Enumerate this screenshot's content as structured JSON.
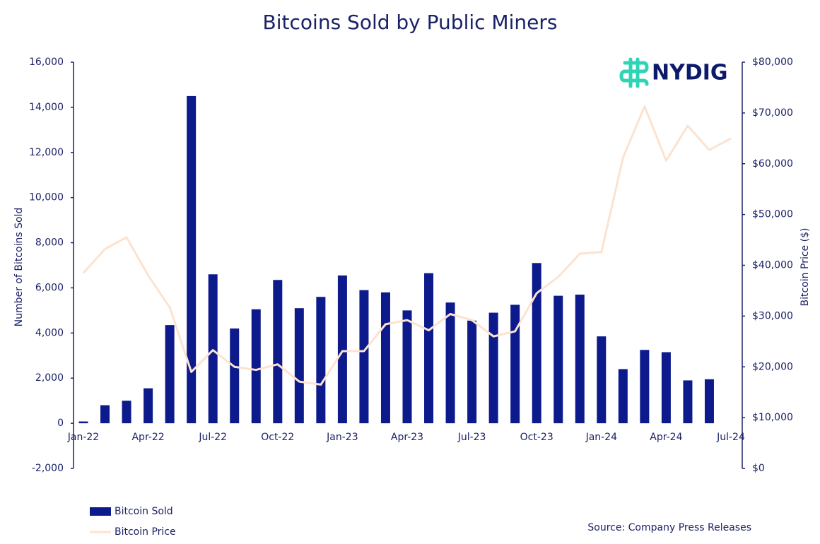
{
  "chart_data": {
    "type": "bar",
    "title": "Bitcoins Sold by Public Miners",
    "ylabel": "Number of Bitcoins Sold",
    "y2label": "Bitcoin Price ($)",
    "source": "Source: Company Press Releases",
    "categories": [
      "Jan-22",
      null,
      null,
      "Apr-22",
      null,
      null,
      "Jul-22",
      null,
      null,
      "Oct-22",
      null,
      null,
      "Jan-23",
      null,
      null,
      "Apr-23",
      null,
      null,
      "Jul-23",
      null,
      null,
      "Oct-23",
      null,
      null,
      "Jan-24",
      null,
      null,
      "Apr-24",
      null,
      null,
      "Jul-24"
    ],
    "series": [
      {
        "name": "Bitcoin Sold",
        "type": "bar",
        "axis": "y",
        "color": "#0c1a8c",
        "values": [
          80,
          800,
          1000,
          1550,
          4350,
          14500,
          6600,
          4200,
          5050,
          6350,
          5100,
          5600,
          6550,
          5900,
          5800,
          5000,
          6650,
          5350,
          4550,
          4900,
          5250,
          7100,
          5650,
          5700,
          3850,
          2400,
          3250,
          3150,
          1900,
          1950,
          null
        ]
      },
      {
        "name": "Bitcoin Price",
        "type": "line",
        "axis": "y2",
        "color": "#fce3d0",
        "values": [
          38500,
          43200,
          45500,
          38000,
          31700,
          19000,
          23300,
          20000,
          19400,
          20500,
          17100,
          16500,
          23100,
          23100,
          28400,
          29200,
          27200,
          30400,
          29200,
          26000,
          27000,
          34500,
          37700,
          42300,
          42600,
          61200,
          71300,
          60600,
          67500,
          62700,
          65000
        ]
      }
    ],
    "ylim": [
      -2000,
      16000
    ],
    "yticks": [
      {
        "value": -2000,
        "label": "-2,000"
      },
      0,
      {
        "value": 2000,
        "label": "2,000"
      },
      {
        "value": 4000,
        "label": "4,000"
      },
      {
        "value": 6000,
        "label": "6,000"
      },
      {
        "value": 8000,
        "label": "8,000"
      },
      {
        "value": 10000,
        "label": "10,000"
      },
      {
        "value": 12000,
        "label": "12,000"
      },
      {
        "value": 14000,
        "label": "14,000"
      },
      {
        "value": 16000,
        "label": "16,000"
      }
    ],
    "y2lim": [
      0,
      80000
    ],
    "y2ticks": [
      {
        "value": 0,
        "label": "$0"
      },
      {
        "value": 10000,
        "label": "$10,000"
      },
      {
        "value": 20000,
        "label": "$20,000"
      },
      {
        "value": 30000,
        "label": "$30,000"
      },
      {
        "value": 40000,
        "label": "$40,000"
      },
      {
        "value": 50000,
        "label": "$50,000"
      },
      {
        "value": 60000,
        "label": "$60,000"
      },
      {
        "value": 70000,
        "label": "$70,000"
      },
      {
        "value": 80000,
        "label": "$80,000"
      }
    ],
    "grid": false,
    "legend": "bottom-left"
  },
  "logo": "NYDIG"
}
